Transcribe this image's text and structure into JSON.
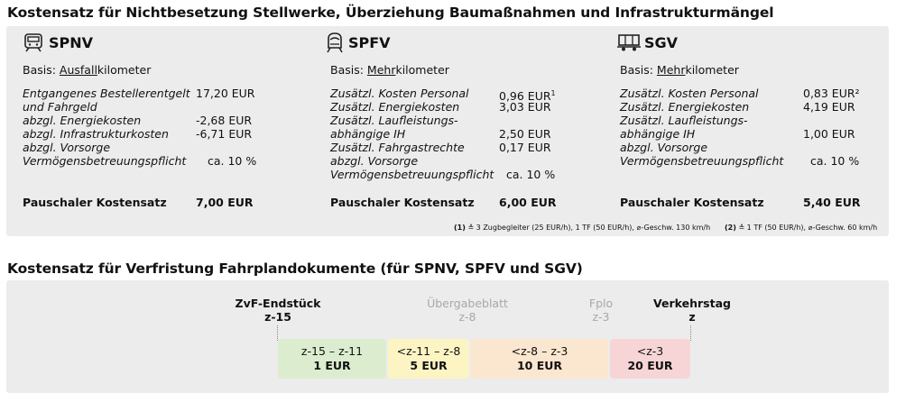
{
  "section1": {
    "title": "Kostensatz für Nichtbesetzung Stellwerke, Überziehung Baumaßnahmen und Infrastrukturmängel",
    "columns": [
      {
        "name": "SPNV",
        "icon": "regional-train-icon",
        "basis_prefix": "Basis: ",
        "basis_underlined": "Ausfall",
        "basis_suffix": "kilometer",
        "rows": [
          {
            "label": "Entgangenes Bestellerentgelt",
            "value": "17,20 EUR"
          },
          {
            "label": "und Fahrgeld",
            "value": ""
          },
          {
            "label": "abzgl. Energiekosten",
            "value": "-2,68 EUR"
          },
          {
            "label": "abzgl. Infrastrukturkosten",
            "value": "-6,71 EUR"
          },
          {
            "label": "abzgl. Vorsorge",
            "value": ""
          },
          {
            "label": "Vermögensbetreuungspflicht",
            "value": "ca. 10 %"
          }
        ],
        "total_label": "Pauschaler Kostensatz",
        "total_value": "7,00 EUR"
      },
      {
        "name": "SPFV",
        "icon": "high-speed-train-icon",
        "basis_prefix": "Basis: ",
        "basis_underlined": "Mehr",
        "basis_suffix": "kilometer",
        "rows": [
          {
            "label": "Zusätzl. Kosten Personal",
            "value": "0,96 EUR",
            "sup": "1"
          },
          {
            "label": "Zusätzl. Energiekosten",
            "value": "3,03 EUR"
          },
          {
            "label": "Zusätzl. Laufleistungs-",
            "value": ""
          },
          {
            "label": "abhängige IH",
            "value": "2,50 EUR"
          },
          {
            "label": "Zusätzl. Fahrgastrechte",
            "value": "0,17 EUR"
          },
          {
            "label": "abzgl. Vorsorge",
            "value": ""
          },
          {
            "label": "Vermögensbetreuungspflicht",
            "value": "ca. 10 %"
          }
        ],
        "total_label": "Pauschaler Kostensatz",
        "total_value": "6,00 EUR"
      },
      {
        "name": "SGV",
        "icon": "freight-wagon-icon",
        "basis_prefix": "Basis: ",
        "basis_underlined": "Mehr",
        "basis_suffix": "kilometer",
        "rows": [
          {
            "label": "Zusätzl. Kosten Personal",
            "value": "0,83 EUR²"
          },
          {
            "label": "Zusätzl. Energiekosten",
            "value": "4,19 EUR"
          },
          {
            "label": "Zusätzl. Laufleistungs-",
            "value": ""
          },
          {
            "label": "abhängige IH",
            "value": "1,00 EUR"
          },
          {
            "label": "abzgl. Vorsorge",
            "value": ""
          },
          {
            "label": "Vermögensbetreuungspflicht",
            "value": "ca. 10 %"
          }
        ],
        "total_label": "Pauschaler Kostensatz",
        "total_value": "5,40 EUR"
      }
    ],
    "footnotes": [
      {
        "marker": "(1)",
        "text": "≙ 3 Zugbegleiter (25 EUR/h), 1 TF (50 EUR/h), ⌀-Geschw. 130 km/h"
      },
      {
        "marker": "(2)",
        "text": "≙ 1 TF (50 EUR/h),  ⌀-Geschw. 60 km/h"
      }
    ]
  },
  "section2": {
    "title": "Kostensatz für Verfristung Fahrplandokumente (für SPNV, SPFV und SGV)",
    "milestones": [
      {
        "name": "ZvF-Endstück",
        "code": "z-15",
        "style": "bold"
      },
      {
        "name": "Übergabeblatt",
        "code": "z-8",
        "style": "grey"
      },
      {
        "name": "Fplo",
        "code": "z-3",
        "style": "grey"
      },
      {
        "name": "Verkehrstag",
        "code": "z",
        "style": "bold"
      }
    ],
    "segments": [
      {
        "range": "z-15 – z-11",
        "price": "1 EUR",
        "color": "#dcedcf"
      },
      {
        "range": "<z-11 – z-8",
        "price": "5 EUR",
        "color": "#fdf4c4"
      },
      {
        "range": "<z-8 – z-3",
        "price": "10 EUR",
        "color": "#fbe6cf"
      },
      {
        "range": "<z-3",
        "price": "20 EUR",
        "color": "#f7d5d6"
      }
    ]
  }
}
